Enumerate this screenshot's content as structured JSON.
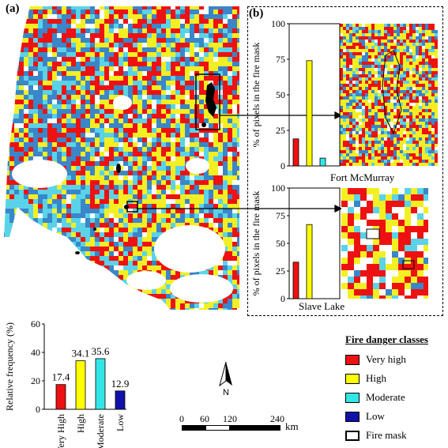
{
  "labels": {
    "panel_a": "(a)",
    "panel_b": "(b)",
    "north": "N",
    "scale_unit": "km",
    "scale_ticks": [
      "0",
      "60",
      "120",
      "240"
    ]
  },
  "legend": {
    "title": "Fire danger classes",
    "items": [
      {
        "label": "Very high",
        "color": "#ee1111"
      },
      {
        "label": "High",
        "color": "#ffff00"
      },
      {
        "label": "Moderate",
        "color": "#33e6e6"
      },
      {
        "label": "Low",
        "color": "#1111aa"
      },
      {
        "label": "Fire mask",
        "color": "#ffffff"
      }
    ]
  },
  "map_colors": {
    "very_high": "#ee1111",
    "high": "#f4ef22",
    "moderate": "#5ad3e8",
    "low": "#3a86c8",
    "none": "#ffffff"
  },
  "chart_data": [
    {
      "type": "bar",
      "ylabel": "Relative frequency (%)",
      "categories": [
        "Very High",
        "High",
        "Moderate",
        "Low"
      ],
      "values": [
        17.4,
        34.1,
        35.6,
        12.9
      ],
      "data_labels": [
        "17.4",
        "34.1",
        "35.6",
        "12.9"
      ],
      "colors": [
        "#ee1111",
        "#ffff00",
        "#33e6e6",
        "#1111aa"
      ],
      "ylim": [
        0,
        60
      ],
      "yticks": [
        0,
        20,
        40,
        60
      ]
    },
    {
      "type": "bar",
      "title": "Fort McMurray",
      "ylabel": "% of pixels in the fire mask",
      "categories": [
        "Very high",
        "High",
        "Moderate",
        "Low"
      ],
      "values": [
        19,
        74,
        5.5,
        0
      ],
      "colors": [
        "#ee1111",
        "#ffff00",
        "#33e6e6",
        "#1111aa"
      ],
      "ylim": [
        0,
        100
      ],
      "yticks": [
        0,
        25,
        50,
        75,
        100
      ]
    },
    {
      "type": "bar",
      "title": "Slave Lake",
      "ylabel": "% of pixels in the fire mask",
      "categories": [
        "Very high",
        "High",
        "Moderate",
        "Low"
      ],
      "values": [
        33,
        67,
        0,
        0
      ],
      "colors": [
        "#ee1111",
        "#ffff00",
        "#33e6e6",
        "#1111aa"
      ],
      "ylim": [
        0,
        100
      ],
      "yticks": [
        0,
        25,
        50,
        75,
        100
      ]
    }
  ]
}
